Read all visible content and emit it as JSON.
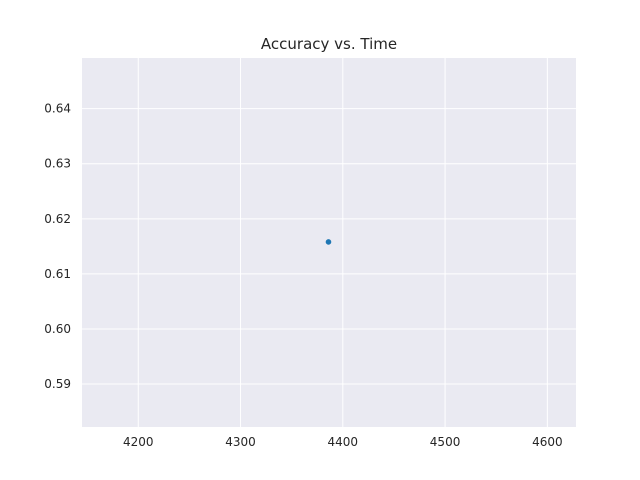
{
  "chart_data": {
    "type": "scatter",
    "title": "Accuracy vs. Time",
    "xlabel": "",
    "ylabel": "",
    "xlim": [
      4145,
      4628
    ],
    "ylim": [
      0.5822,
      0.6492
    ],
    "x_ticks": [
      4200,
      4300,
      4400,
      4500,
      4600
    ],
    "y_ticks": [
      0.59,
      0.6,
      0.61,
      0.62,
      0.63,
      0.64
    ],
    "y_tick_labels": [
      "0.59",
      "0.60",
      "0.61",
      "0.62",
      "0.63",
      "0.64"
    ],
    "grid": true,
    "series": [
      {
        "color": "#1f77b4",
        "points": [
          {
            "x": 4386,
            "y": 0.6158
          }
        ]
      }
    ],
    "colors": {
      "plot_background": "#eaeaf2",
      "grid": "#ffffff",
      "text": "#262626"
    }
  }
}
